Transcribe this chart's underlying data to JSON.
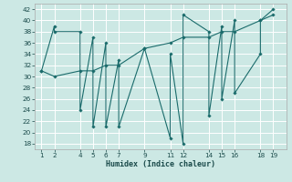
{
  "xlabel": "Humidex (Indice chaleur)",
  "bg_color": "#cce8e4",
  "grid_color": "#ffffff",
  "line_color": "#1a6b6b",
  "marker_color": "#1a6b6b",
  "xlim": [
    0.5,
    20
  ],
  "ylim": [
    17,
    43
  ],
  "yticks": [
    18,
    20,
    22,
    24,
    26,
    28,
    30,
    32,
    34,
    36,
    38,
    40,
    42
  ],
  "xticks": [
    1,
    2,
    4,
    5,
    6,
    7,
    9,
    11,
    12,
    14,
    15,
    16,
    18,
    19
  ],
  "series1_x": [
    1,
    2,
    2,
    4,
    4,
    5,
    5,
    6,
    6,
    7,
    7,
    9,
    11,
    11,
    12,
    12,
    14,
    14,
    15,
    15,
    16,
    16,
    18,
    18,
    19
  ],
  "series1_y": [
    31,
    39,
    38,
    38,
    24,
    37,
    21,
    36,
    21,
    33,
    21,
    35,
    19,
    34,
    18,
    41,
    38,
    23,
    39,
    26,
    40,
    27,
    34,
    40,
    42
  ],
  "series2_x": [
    1,
    2,
    4,
    5,
    6,
    7,
    9,
    11,
    12,
    14,
    15,
    16,
    18,
    19
  ],
  "series2_y": [
    31,
    30,
    31,
    31,
    32,
    32,
    35,
    36,
    37,
    37,
    38,
    38,
    40,
    41
  ],
  "figsize": [
    3.2,
    2.0
  ],
  "dpi": 100
}
